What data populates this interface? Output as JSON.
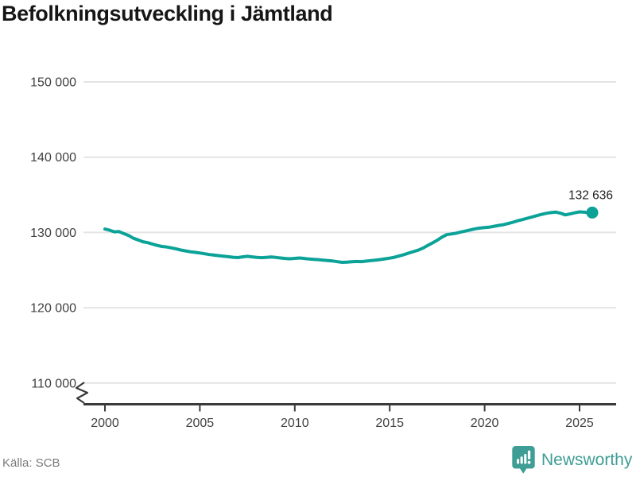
{
  "title": "Befolkningsutveckling i Jämtland",
  "chart_data": {
    "type": "line",
    "title": "Befolkningsutveckling i Jämtland",
    "xlabel": "",
    "ylabel": "",
    "xlim": [
      1998.9,
      2026.9
    ],
    "ylim": [
      110000,
      150000
    ],
    "grid": "horizontal",
    "axis_break_at_bottom": true,
    "legend": "none",
    "colors": {
      "line": "#0ba298",
      "grid": "#e4e4e4",
      "axis": "#3a3a3a"
    },
    "x_ticks": [
      {
        "value": 2000,
        "label": "2000"
      },
      {
        "value": 2005,
        "label": "2005"
      },
      {
        "value": 2010,
        "label": "2010"
      },
      {
        "value": 2015,
        "label": "2015"
      },
      {
        "value": 2020,
        "label": "2020"
      },
      {
        "value": 2025,
        "label": "2025"
      }
    ],
    "y_ticks": [
      {
        "value": 150000,
        "label": "150 000"
      },
      {
        "value": 140000,
        "label": "140 000"
      },
      {
        "value": 130000,
        "label": "130 000"
      },
      {
        "value": 120000,
        "label": "120 000"
      },
      {
        "value": 110000,
        "label": "110 000"
      }
    ],
    "points": [
      [
        2000.0,
        130450
      ],
      [
        2000.25,
        130300
      ],
      [
        2000.5,
        130080
      ],
      [
        2000.75,
        130120
      ],
      [
        2001.0,
        129840
      ],
      [
        2001.25,
        129600
      ],
      [
        2001.5,
        129230
      ],
      [
        2001.75,
        129010
      ],
      [
        2002.0,
        128760
      ],
      [
        2002.25,
        128650
      ],
      [
        2002.5,
        128460
      ],
      [
        2002.75,
        128280
      ],
      [
        2003.0,
        128140
      ],
      [
        2003.25,
        128070
      ],
      [
        2003.5,
        127950
      ],
      [
        2003.75,
        127810
      ],
      [
        2004.0,
        127670
      ],
      [
        2004.25,
        127550
      ],
      [
        2004.5,
        127430
      ],
      [
        2004.75,
        127360
      ],
      [
        2005.0,
        127280
      ],
      [
        2005.25,
        127170
      ],
      [
        2005.5,
        127060
      ],
      [
        2005.75,
        126990
      ],
      [
        2006.0,
        126920
      ],
      [
        2006.25,
        126850
      ],
      [
        2006.5,
        126780
      ],
      [
        2006.75,
        126710
      ],
      [
        2007.0,
        126660
      ],
      [
        2007.25,
        126760
      ],
      [
        2007.5,
        126830
      ],
      [
        2007.75,
        126760
      ],
      [
        2008.0,
        126690
      ],
      [
        2008.25,
        126650
      ],
      [
        2008.5,
        126700
      ],
      [
        2008.75,
        126740
      ],
      [
        2009.0,
        126680
      ],
      [
        2009.25,
        126610
      ],
      [
        2009.5,
        126550
      ],
      [
        2009.75,
        126510
      ],
      [
        2010.0,
        126560
      ],
      [
        2010.25,
        126610
      ],
      [
        2010.5,
        126550
      ],
      [
        2010.75,
        126470
      ],
      [
        2011.0,
        126430
      ],
      [
        2011.25,
        126390
      ],
      [
        2011.5,
        126320
      ],
      [
        2011.75,
        126270
      ],
      [
        2012.0,
        126210
      ],
      [
        2012.25,
        126110
      ],
      [
        2012.5,
        126030
      ],
      [
        2012.75,
        126060
      ],
      [
        2013.0,
        126100
      ],
      [
        2013.25,
        126150
      ],
      [
        2013.5,
        126120
      ],
      [
        2013.75,
        126190
      ],
      [
        2014.0,
        126260
      ],
      [
        2014.25,
        126320
      ],
      [
        2014.5,
        126400
      ],
      [
        2014.75,
        126490
      ],
      [
        2015.0,
        126590
      ],
      [
        2015.25,
        126710
      ],
      [
        2015.5,
        126880
      ],
      [
        2015.75,
        127050
      ],
      [
        2016.0,
        127270
      ],
      [
        2016.25,
        127450
      ],
      [
        2016.5,
        127640
      ],
      [
        2016.75,
        127920
      ],
      [
        2017.0,
        128270
      ],
      [
        2017.25,
        128610
      ],
      [
        2017.5,
        128960
      ],
      [
        2017.75,
        129380
      ],
      [
        2018.0,
        129700
      ],
      [
        2018.25,
        129800
      ],
      [
        2018.5,
        129910
      ],
      [
        2018.75,
        130060
      ],
      [
        2019.0,
        130190
      ],
      [
        2019.25,
        130340
      ],
      [
        2019.5,
        130490
      ],
      [
        2019.75,
        130580
      ],
      [
        2020.0,
        130640
      ],
      [
        2020.25,
        130710
      ],
      [
        2020.5,
        130820
      ],
      [
        2020.75,
        130940
      ],
      [
        2021.0,
        131040
      ],
      [
        2021.25,
        131190
      ],
      [
        2021.5,
        131360
      ],
      [
        2021.75,
        131560
      ],
      [
        2022.0,
        131710
      ],
      [
        2022.25,
        131890
      ],
      [
        2022.5,
        132060
      ],
      [
        2022.75,
        132240
      ],
      [
        2023.0,
        132400
      ],
      [
        2023.25,
        132550
      ],
      [
        2023.5,
        132640
      ],
      [
        2023.75,
        132700
      ],
      [
        2024.0,
        132560
      ],
      [
        2024.25,
        132330
      ],
      [
        2024.5,
        132460
      ],
      [
        2024.75,
        132610
      ],
      [
        2025.0,
        132730
      ],
      [
        2025.25,
        132690
      ],
      [
        2025.5,
        132600
      ],
      [
        2025.67,
        132636
      ]
    ],
    "end_value": 132636,
    "end_label": "132 636"
  },
  "footer": {
    "source": "Källa: SCB",
    "brand": "Newsworthy"
  }
}
